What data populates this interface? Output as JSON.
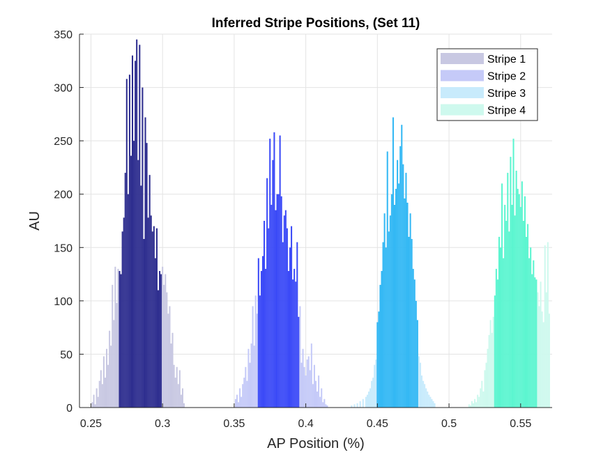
{
  "chart_data": {
    "type": "bar",
    "title": "Inferred Stripe Positions,  (Set 11)",
    "xlabel": "AP Position (%)",
    "ylabel": "AU",
    "xlim": [
      0.242,
      0.572
    ],
    "ylim": [
      0,
      350
    ],
    "xticks": [
      0.25,
      0.3,
      0.35,
      0.4,
      0.45,
      0.5,
      0.55
    ],
    "xtick_labels": [
      "0.25",
      "0.3",
      "0.35",
      "0.4",
      "0.45",
      "0.5",
      "0.55"
    ],
    "yticks": [
      0,
      50,
      100,
      150,
      200,
      250,
      300,
      350
    ],
    "ytick_labels": [
      "0",
      "50",
      "100",
      "150",
      "200",
      "250",
      "300",
      "350"
    ],
    "grid": true,
    "legend_location": "top-right",
    "bin_width": 0.001,
    "series": [
      {
        "name": "Stripe 1",
        "color": "#2e2e8f",
        "light_color": "#c8c8e2",
        "core_range": [
          0.2695,
          0.2995
        ],
        "bins": [
          [
            0.251,
            5
          ],
          [
            0.252,
            12
          ],
          [
            0.253,
            3
          ],
          [
            0.254,
            18
          ],
          [
            0.255,
            10
          ],
          [
            0.256,
            25
          ],
          [
            0.257,
            35
          ],
          [
            0.258,
            22
          ],
          [
            0.259,
            48
          ],
          [
            0.26,
            28
          ],
          [
            0.261,
            55
          ],
          [
            0.262,
            40
          ],
          [
            0.263,
            72
          ],
          [
            0.264,
            58
          ],
          [
            0.265,
            115
          ],
          [
            0.266,
            82
          ],
          [
            0.267,
            132
          ],
          [
            0.268,
            98
          ],
          [
            0.269,
            130
          ],
          [
            0.27,
            128
          ],
          [
            0.271,
            125
          ],
          [
            0.272,
            165
          ],
          [
            0.273,
            178
          ],
          [
            0.274,
            220
          ],
          [
            0.275,
            308
          ],
          [
            0.276,
            200
          ],
          [
            0.277,
            312
          ],
          [
            0.278,
            236
          ],
          [
            0.279,
            330
          ],
          [
            0.28,
            250
          ],
          [
            0.281,
            325
          ],
          [
            0.282,
            345
          ],
          [
            0.283,
            232
          ],
          [
            0.284,
            340
          ],
          [
            0.285,
            208
          ],
          [
            0.286,
            300
          ],
          [
            0.287,
            158
          ],
          [
            0.288,
            272
          ],
          [
            0.289,
            248
          ],
          [
            0.29,
            178
          ],
          [
            0.291,
            218
          ],
          [
            0.292,
            180
          ],
          [
            0.293,
            165
          ],
          [
            0.294,
            170
          ],
          [
            0.295,
            140
          ],
          [
            0.296,
            168
          ],
          [
            0.297,
            110
          ],
          [
            0.298,
            128
          ],
          [
            0.299,
            125
          ],
          [
            0.3,
            132
          ],
          [
            0.301,
            115
          ],
          [
            0.302,
            125
          ],
          [
            0.303,
            108
          ],
          [
            0.304,
            88
          ],
          [
            0.305,
            95
          ],
          [
            0.306,
            60
          ],
          [
            0.307,
            70
          ],
          [
            0.308,
            40
          ],
          [
            0.309,
            28
          ],
          [
            0.31,
            38
          ],
          [
            0.311,
            22
          ],
          [
            0.312,
            35
          ],
          [
            0.313,
            12
          ],
          [
            0.314,
            18
          ],
          [
            0.315,
            4
          ]
        ]
      },
      {
        "name": "Stripe 2",
        "color": "#3b4af7",
        "light_color": "#c5caf8",
        "core_range": [
          0.3665,
          0.3955
        ],
        "bins": [
          [
            0.351,
            8
          ],
          [
            0.352,
            12
          ],
          [
            0.353,
            5
          ],
          [
            0.354,
            18
          ],
          [
            0.355,
            10
          ],
          [
            0.356,
            22
          ],
          [
            0.357,
            28
          ],
          [
            0.358,
            38
          ],
          [
            0.359,
            25
          ],
          [
            0.36,
            55
          ],
          [
            0.361,
            42
          ],
          [
            0.362,
            60
          ],
          [
            0.363,
            95
          ],
          [
            0.364,
            58
          ],
          [
            0.365,
            105
          ],
          [
            0.366,
            88
          ],
          [
            0.367,
            140
          ],
          [
            0.368,
            105
          ],
          [
            0.369,
            128
          ],
          [
            0.37,
            142
          ],
          [
            0.371,
            175
          ],
          [
            0.372,
            130
          ],
          [
            0.373,
            215
          ],
          [
            0.374,
            168
          ],
          [
            0.375,
            252
          ],
          [
            0.376,
            190
          ],
          [
            0.377,
            232
          ],
          [
            0.378,
            258
          ],
          [
            0.379,
            185
          ],
          [
            0.38,
            200
          ],
          [
            0.381,
            200
          ],
          [
            0.382,
            255
          ],
          [
            0.383,
            198
          ],
          [
            0.384,
            155
          ],
          [
            0.385,
            180
          ],
          [
            0.386,
            185
          ],
          [
            0.387,
            168
          ],
          [
            0.388,
            128
          ],
          [
            0.389,
            150
          ],
          [
            0.39,
            170
          ],
          [
            0.391,
            120
          ],
          [
            0.392,
            130
          ],
          [
            0.393,
            118
          ],
          [
            0.394,
            155
          ],
          [
            0.395,
            85
          ],
          [
            0.396,
            95
          ],
          [
            0.397,
            42
          ],
          [
            0.398,
            55
          ],
          [
            0.399,
            38
          ],
          [
            0.4,
            30
          ],
          [
            0.401,
            45
          ],
          [
            0.402,
            48
          ],
          [
            0.403,
            35
          ],
          [
            0.404,
            60
          ],
          [
            0.405,
            22
          ],
          [
            0.406,
            40
          ],
          [
            0.407,
            25
          ],
          [
            0.408,
            15
          ],
          [
            0.409,
            30
          ],
          [
            0.41,
            10
          ],
          [
            0.411,
            18
          ],
          [
            0.412,
            5
          ],
          [
            0.413,
            8
          ],
          [
            0.414,
            3
          ],
          [
            0.415,
            2
          ]
        ]
      },
      {
        "name": "Stripe 3",
        "color": "#33b8f4",
        "light_color": "#c8ebfc",
        "core_range": [
          0.4495,
          0.4785
        ],
        "bins": [
          [
            0.432,
            2
          ],
          [
            0.434,
            3
          ],
          [
            0.436,
            4
          ],
          [
            0.438,
            6
          ],
          [
            0.44,
            8
          ],
          [
            0.442,
            10
          ],
          [
            0.443,
            12
          ],
          [
            0.444,
            15
          ],
          [
            0.445,
            18
          ],
          [
            0.446,
            25
          ],
          [
            0.447,
            28
          ],
          [
            0.448,
            40
          ],
          [
            0.449,
            45
          ],
          [
            0.45,
            80
          ],
          [
            0.451,
            90
          ],
          [
            0.452,
            115
          ],
          [
            0.453,
            128
          ],
          [
            0.454,
            155
          ],
          [
            0.455,
            182
          ],
          [
            0.456,
            150
          ],
          [
            0.457,
            240
          ],
          [
            0.458,
            165
          ],
          [
            0.459,
            180
          ],
          [
            0.46,
            200
          ],
          [
            0.461,
            272
          ],
          [
            0.462,
            190
          ],
          [
            0.463,
            205
          ],
          [
            0.464,
            232
          ],
          [
            0.465,
            210
          ],
          [
            0.466,
            245
          ],
          [
            0.467,
            265
          ],
          [
            0.468,
            228
          ],
          [
            0.469,
            196
          ],
          [
            0.47,
            220
          ],
          [
            0.471,
            192
          ],
          [
            0.472,
            160
          ],
          [
            0.473,
            182
          ],
          [
            0.474,
            158
          ],
          [
            0.475,
            130
          ],
          [
            0.476,
            120
          ],
          [
            0.477,
            100
          ],
          [
            0.478,
            82
          ],
          [
            0.479,
            48
          ],
          [
            0.48,
            42
          ],
          [
            0.481,
            30
          ],
          [
            0.482,
            25
          ],
          [
            0.483,
            22
          ],
          [
            0.484,
            18
          ],
          [
            0.485,
            15
          ],
          [
            0.486,
            12
          ],
          [
            0.487,
            10
          ],
          [
            0.488,
            8
          ],
          [
            0.489,
            6
          ],
          [
            0.49,
            4
          ]
        ]
      },
      {
        "name": "Stripe 4",
        "color": "#5cf5d0",
        "light_color": "#cef9ee",
        "core_range": [
          0.5315,
          0.5615
        ],
        "bins": [
          [
            0.514,
            3
          ],
          [
            0.515,
            2
          ],
          [
            0.516,
            6
          ],
          [
            0.517,
            4
          ],
          [
            0.518,
            8
          ],
          [
            0.519,
            5
          ],
          [
            0.52,
            12
          ],
          [
            0.521,
            10
          ],
          [
            0.522,
            18
          ],
          [
            0.523,
            25
          ],
          [
            0.524,
            15
          ],
          [
            0.525,
            35
          ],
          [
            0.526,
            42
          ],
          [
            0.527,
            55
          ],
          [
            0.528,
            68
          ],
          [
            0.529,
            82
          ],
          [
            0.53,
            70
          ],
          [
            0.531,
            85
          ],
          [
            0.532,
            105
          ],
          [
            0.533,
            130
          ],
          [
            0.534,
            120
          ],
          [
            0.535,
            160
          ],
          [
            0.536,
            150
          ],
          [
            0.537,
            210
          ],
          [
            0.538,
            140
          ],
          [
            0.539,
            190
          ],
          [
            0.54,
            175
          ],
          [
            0.541,
            220
          ],
          [
            0.542,
            165
          ],
          [
            0.543,
            235
          ],
          [
            0.544,
            190
          ],
          [
            0.545,
            252
          ],
          [
            0.546,
            180
          ],
          [
            0.547,
            222
          ],
          [
            0.548,
            205
          ],
          [
            0.549,
            200
          ],
          [
            0.55,
            188
          ],
          [
            0.551,
            212
          ],
          [
            0.552,
            175
          ],
          [
            0.553,
            198
          ],
          [
            0.554,
            160
          ],
          [
            0.555,
            172
          ],
          [
            0.556,
            140
          ],
          [
            0.557,
            150
          ],
          [
            0.558,
            125
          ],
          [
            0.559,
            138
          ],
          [
            0.56,
            122
          ],
          [
            0.561,
            120
          ],
          [
            0.562,
            108
          ],
          [
            0.563,
            95
          ],
          [
            0.564,
            118
          ],
          [
            0.565,
            90
          ],
          [
            0.566,
            80
          ],
          [
            0.567,
            152
          ],
          [
            0.568,
            108
          ],
          [
            0.569,
            155
          ],
          [
            0.57,
            88
          ]
        ]
      }
    ]
  }
}
